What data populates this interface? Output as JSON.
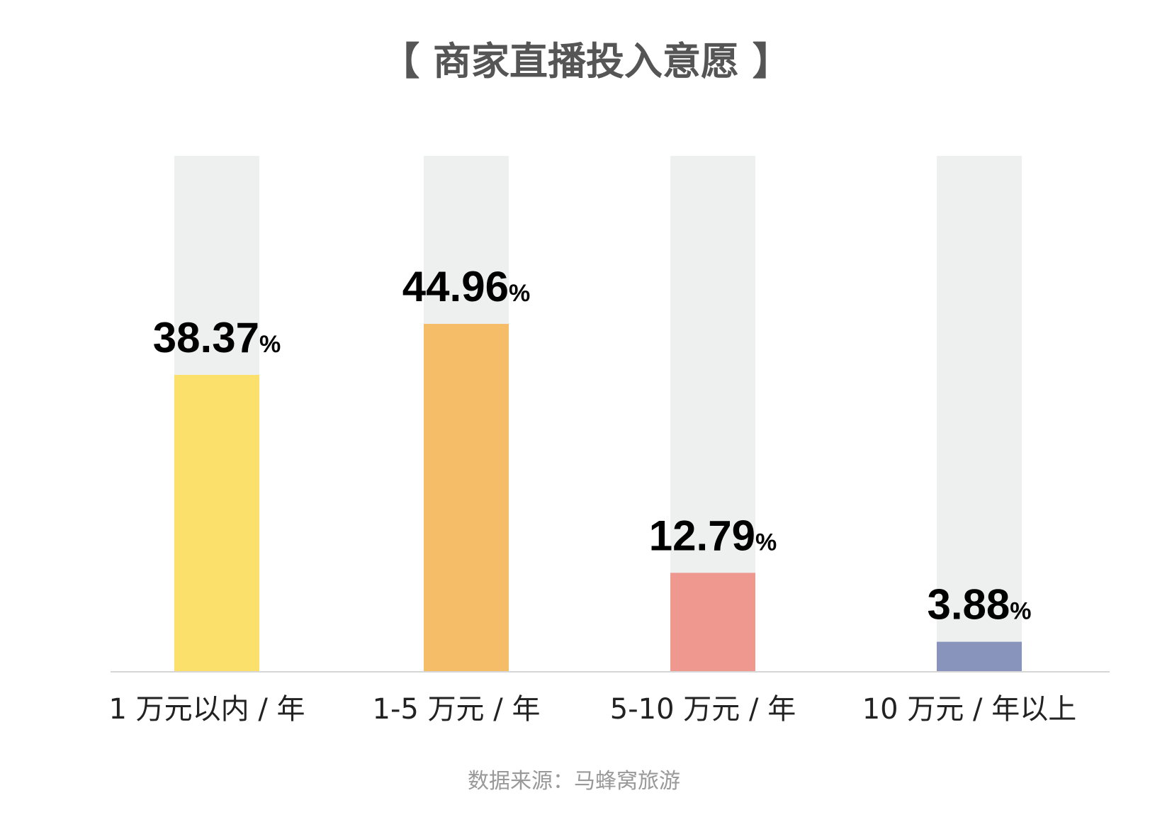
{
  "chart_data": {
    "type": "bar",
    "title": "【 商家直播投入意愿 】",
    "categories": [
      "1 万元以内 / 年",
      "1-5 万元 / 年",
      "5-10 万元 / 年",
      "10 万元 / 年以上"
    ],
    "values": [
      38.37,
      44.96,
      12.79,
      3.88
    ],
    "value_labels": [
      "38.37",
      "44.96",
      "12.79",
      "3.88"
    ],
    "value_unit": "%",
    "colors": [
      "#fbe06b",
      "#f5bd68",
      "#ef9890",
      "#8994bc"
    ],
    "track_color": "#eeefef",
    "ylim": [
      0,
      100
    ],
    "grid": false,
    "legend": "none",
    "source": "数据来源：马蜂窝旅游"
  }
}
